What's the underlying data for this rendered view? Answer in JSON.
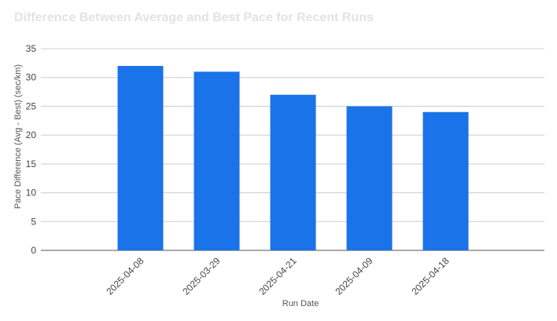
{
  "chart_data": {
    "type": "bar",
    "title": "Difference Between Average and Best Pace for Recent Runs",
    "xlabel": "Run Date",
    "ylabel": "Pace Difference (Avg - Best) (sec/km)",
    "categories": [
      "2025-04-08",
      "2025-03-29",
      "2025-04-21",
      "2025-04-09",
      "2025-04-18"
    ],
    "values": [
      32,
      31,
      27,
      25,
      24
    ],
    "ylim": [
      0,
      35
    ],
    "yticks": [
      0,
      5,
      10,
      15,
      20,
      25,
      30,
      35
    ],
    "grid": true,
    "legend": "none",
    "colors": {
      "bar": "#1a73e8",
      "grid": "#cccccc",
      "baseline": "#555555",
      "title": "#e3e3e3"
    }
  }
}
